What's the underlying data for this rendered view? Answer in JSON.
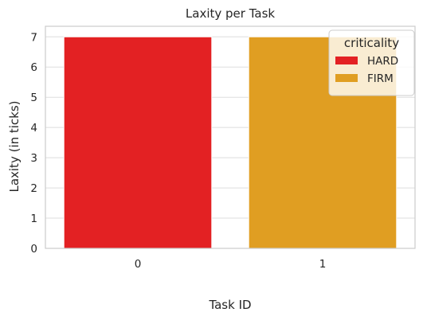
{
  "chart_data": {
    "type": "bar",
    "title": "Laxity per Task",
    "xlabel": "Task ID",
    "ylabel": "Laxity (in ticks)",
    "categories": [
      "0",
      "1"
    ],
    "series": [
      {
        "name": "HARD",
        "values": [
          7,
          null
        ],
        "color": "#e32123"
      },
      {
        "name": "FIRM",
        "values": [
          null,
          7
        ],
        "color": "#e09e22"
      }
    ],
    "ylim": [
      0,
      7.35
    ],
    "yticks": [
      0,
      1,
      2,
      3,
      4,
      5,
      6,
      7
    ],
    "grid": true,
    "legend": {
      "title": "criticality",
      "placement": "top-right"
    }
  }
}
